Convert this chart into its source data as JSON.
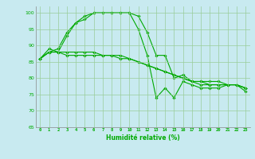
{
  "xlabel": "Humidité relative (%)",
  "xlim": [
    -0.5,
    23.5
  ],
  "ylim": [
    65,
    102
  ],
  "yticks": [
    65,
    70,
    75,
    80,
    85,
    90,
    95,
    100
  ],
  "xticks": [
    0,
    1,
    2,
    3,
    4,
    5,
    6,
    7,
    8,
    9,
    10,
    11,
    12,
    13,
    14,
    15,
    16,
    17,
    18,
    19,
    20,
    21,
    22,
    23
  ],
  "background_color": "#c8eaf0",
  "grid_color": "#99cc99",
  "line_color": "#00aa00",
  "series": [
    [
      86,
      89,
      88,
      93,
      97,
      98,
      100,
      100,
      100,
      100,
      100,
      99,
      94,
      87,
      87,
      80,
      81,
      79,
      79,
      79,
      79,
      78,
      78,
      77
    ],
    [
      86,
      88,
      88,
      88,
      88,
      88,
      88,
      87,
      87,
      87,
      86,
      85,
      84,
      83,
      82,
      81,
      80,
      79,
      78,
      78,
      78,
      78,
      78,
      77
    ],
    [
      86,
      88,
      88,
      87,
      87,
      87,
      87,
      87,
      87,
      86,
      86,
      85,
      84,
      83,
      82,
      81,
      80,
      79,
      79,
      78,
      78,
      78,
      78,
      77
    ],
    [
      86,
      88,
      89,
      94,
      97,
      99,
      100,
      100,
      100,
      100,
      100,
      95,
      87,
      74,
      77,
      74,
      79,
      78,
      77,
      77,
      77,
      78,
      78,
      76
    ]
  ]
}
